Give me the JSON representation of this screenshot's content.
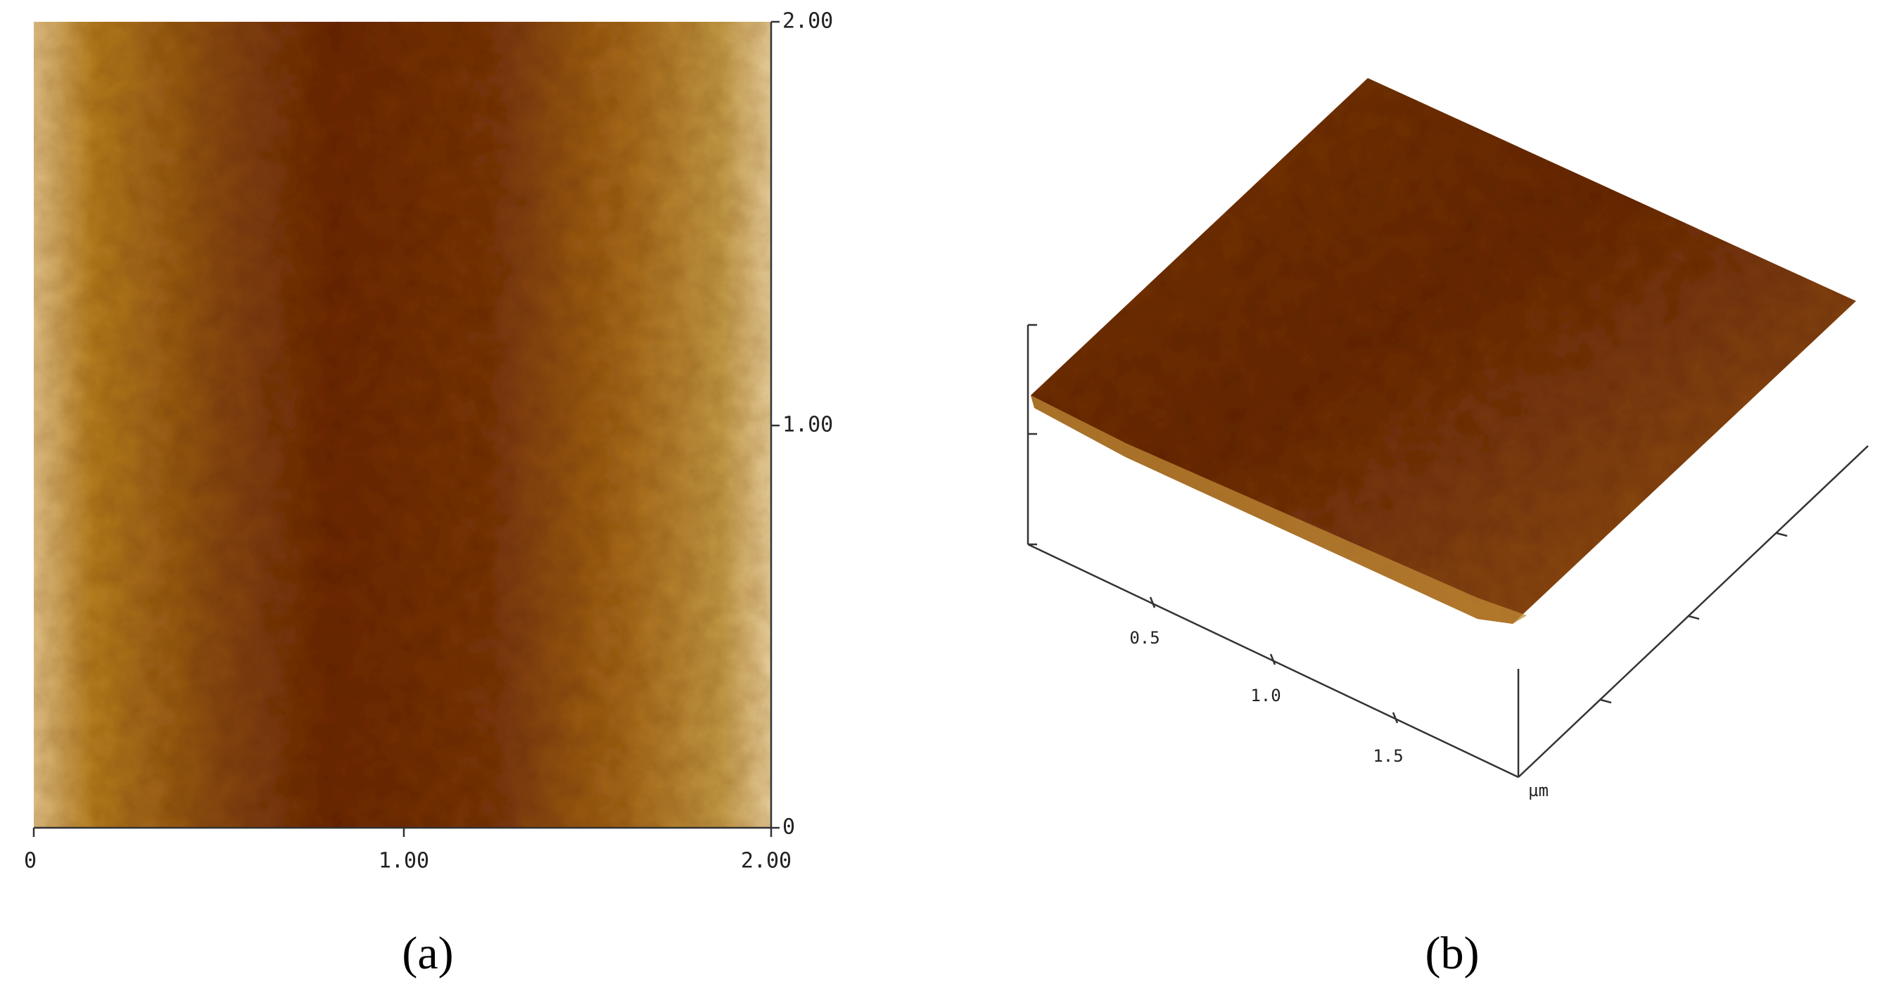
{
  "panel_a": {
    "right_axis_labels": [
      "2.00",
      "1.00",
      "0"
    ],
    "bottom_axis_labels": [
      "0",
      "1.00",
      "2.00"
    ],
    "caption": "(a)"
  },
  "panel_b": {
    "axis_labels": [
      "0.5",
      "1.0",
      "1.5"
    ],
    "unit": "µm",
    "caption": "(b)"
  }
}
